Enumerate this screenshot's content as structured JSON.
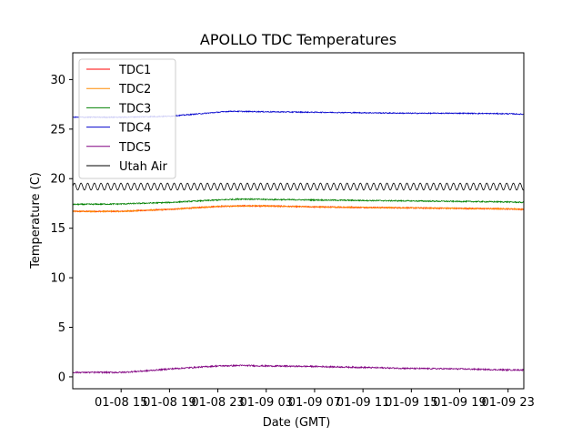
{
  "chart_data": {
    "type": "line",
    "title": "APOLLO TDC Temperatures",
    "xlabel": "Date (GMT)",
    "ylabel": "Temperature (C)",
    "x_unit": "hours since 01-08 11:00 GMT",
    "xlim": [
      0,
      37.3
    ],
    "ylim": [
      -1.2,
      32.7
    ],
    "grid": false,
    "legend_position": "upper-left",
    "xticks": [
      {
        "x": 4,
        "label": "01-08 15"
      },
      {
        "x": 8,
        "label": "01-08 19"
      },
      {
        "x": 12,
        "label": "01-08 23"
      },
      {
        "x": 16,
        "label": "01-09 03"
      },
      {
        "x": 20,
        "label": "01-09 07"
      },
      {
        "x": 24,
        "label": "01-09 11"
      },
      {
        "x": 28,
        "label": "01-09 15"
      },
      {
        "x": 32,
        "label": "01-09 19"
      },
      {
        "x": 36,
        "label": "01-09 23"
      }
    ],
    "yticks": [
      {
        "y": 0,
        "label": "0"
      },
      {
        "y": 5,
        "label": "5"
      },
      {
        "y": 10,
        "label": "10"
      },
      {
        "y": 15,
        "label": "15"
      },
      {
        "y": 20,
        "label": "20"
      },
      {
        "y": 25,
        "label": "25"
      },
      {
        "y": 30,
        "label": "30"
      }
    ],
    "series": [
      {
        "name": "TDC1",
        "color": "#ff0000",
        "x": [
          0,
          4,
          8,
          12,
          14,
          16,
          20,
          24,
          28,
          32,
          36,
          37.3
        ],
        "y": [
          16.7,
          16.7,
          16.9,
          17.2,
          17.25,
          17.25,
          17.15,
          17.1,
          17.05,
          17.0,
          16.95,
          16.9
        ],
        "noise": 0.06,
        "hidden_behind": "TDC2"
      },
      {
        "name": "TDC2",
        "color": "#ff8c00",
        "x": [
          0,
          4,
          8,
          12,
          14,
          16,
          20,
          24,
          28,
          32,
          36,
          37.3
        ],
        "y": [
          16.7,
          16.7,
          16.9,
          17.2,
          17.25,
          17.25,
          17.15,
          17.1,
          17.05,
          17.0,
          16.95,
          16.9
        ],
        "noise": 0.06
      },
      {
        "name": "TDC3",
        "color": "#008000",
        "x": [
          0,
          4,
          8,
          12,
          14,
          16,
          20,
          24,
          28,
          32,
          36,
          37.3
        ],
        "y": [
          17.4,
          17.45,
          17.6,
          17.85,
          17.95,
          17.9,
          17.85,
          17.8,
          17.75,
          17.7,
          17.65,
          17.6
        ],
        "noise": 0.06
      },
      {
        "name": "TDC4",
        "color": "#0000cd",
        "x": [
          0,
          2,
          4,
          8,
          12,
          13,
          16,
          20,
          24,
          28,
          32,
          36,
          37.3
        ],
        "y": [
          26.2,
          26.2,
          26.2,
          26.3,
          26.7,
          26.8,
          26.75,
          26.7,
          26.65,
          26.6,
          26.6,
          26.55,
          26.5
        ],
        "noise": 0.05
      },
      {
        "name": "TDC5",
        "color": "#800080",
        "x": [
          0,
          4,
          6,
          8,
          12,
          14,
          16,
          20,
          24,
          28,
          32,
          36,
          37.3
        ],
        "y": [
          0.45,
          0.45,
          0.6,
          0.8,
          1.1,
          1.15,
          1.1,
          1.05,
          0.95,
          0.85,
          0.8,
          0.7,
          0.7
        ],
        "noise": 0.07
      },
      {
        "name": "Utah Air",
        "color": "#000000",
        "x": [
          0,
          37.3
        ],
        "y": [
          19.2,
          19.2
        ],
        "oscillation_amplitude": 0.35,
        "oscillation_period_hours": 0.55
      }
    ]
  }
}
